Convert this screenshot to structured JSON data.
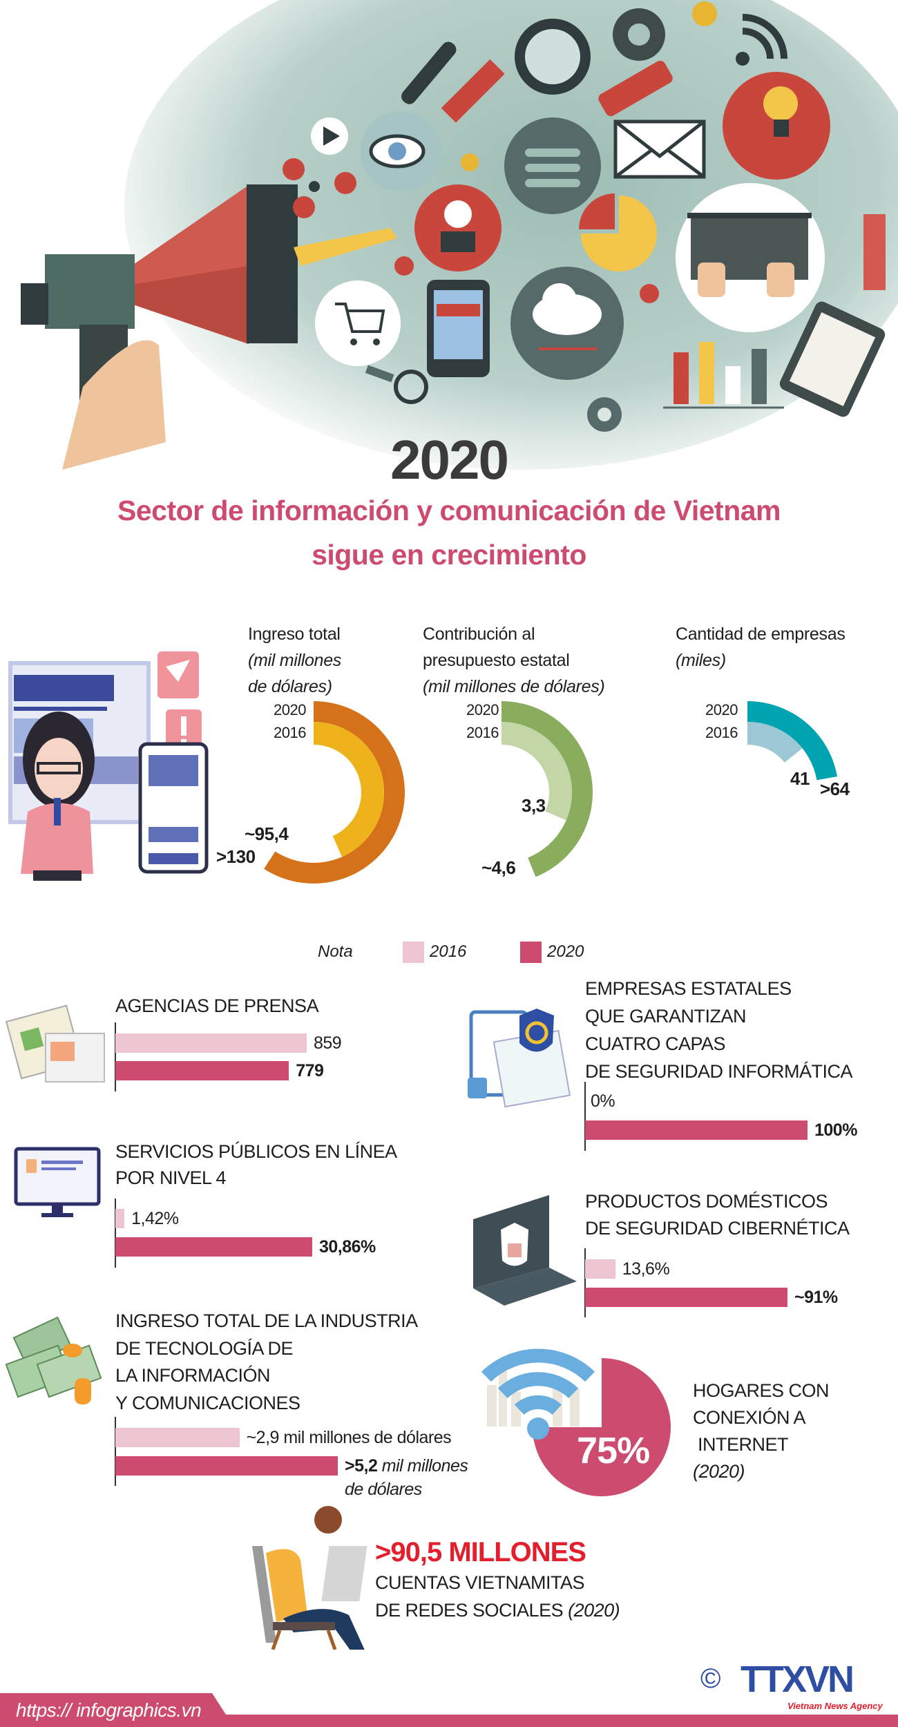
{
  "header": {
    "year": "2020",
    "title_line1": "Sector de información y comunicación de Vietnam",
    "title_line2": "sigue en crecimiento"
  },
  "radial_charts": [
    {
      "title": "Ingreso total",
      "unit_line1": "(mil millones",
      "unit_line2": "de dólares)",
      "year_2020": "2020",
      "year_2016": "2016",
      "value_2020": 130,
      "value_2016": 95.4,
      "label_2020": ">130",
      "label_2016": "~95,4",
      "color_2020": "#d57219",
      "color_2016": "#eeb31a"
    },
    {
      "title": "Contribución al",
      "title_line2": "presupuesto estatal",
      "unit_line1": "(mil millones de dólares)",
      "year_2020": "2020",
      "year_2016": "2016",
      "value_2020": 4.6,
      "value_2016": 3.3,
      "label_2020": "~4,6",
      "label_2016": "3,3",
      "color_2020": "#8aac5d",
      "color_2016": "#c3d6a8"
    },
    {
      "title": "Cantidad de empresas",
      "unit_line1": "(miles)",
      "year_2020": "2020",
      "year_2016": "2016",
      "value_2020": 64,
      "value_2016": 41,
      "label_2020": ">64",
      "label_2016": "41",
      "color_2020": "#00a3b0",
      "color_2016": "#9cc7d4"
    }
  ],
  "legend": {
    "label": "Nota",
    "y2016": "2016",
    "y2020": "2020",
    "color_2016": "#edc5d1",
    "color_2020": "#cc4b6e"
  },
  "bar_charts": {
    "agencias": {
      "title": [
        "AGENCIAS DE PRENSA"
      ],
      "v2016": 859,
      "v2020": 779,
      "l2016": "859",
      "l2020": "779"
    },
    "empresas": {
      "title": [
        "EMPRESAS ESTATALES",
        "QUE GARANTIZAN",
        "CUATRO CAPAS",
        "DE SEGURIDAD INFORMÁTICA"
      ],
      "v2016": 0,
      "v2020": 100,
      "l2016": "0%",
      "l2020": "100%"
    },
    "servicios": {
      "title": [
        "SERVICIOS PÚBLICOS EN LÍNEA",
        "POR NIVEL 4"
      ],
      "v2016": 1.42,
      "v2020": 30.86,
      "l2016": "1,42%",
      "l2020": "30,86%"
    },
    "productos": {
      "title": [
        "PRODUCTOS DOMÉSTICOS",
        "DE SEGURIDAD CIBERNÉTICA"
      ],
      "v2016": 13.6,
      "v2020": 91,
      "l2016": "13,6%",
      "l2020": "~91%"
    },
    "ingreso_tic": {
      "title": [
        "INGRESO TOTAL DE LA INDUSTRIA",
        "DE TECNOLOGÍA DE",
        "LA INFORMACIÓN",
        "Y COMUNICACIONES"
      ],
      "v2016": 2.9,
      "v2020": 5.2,
      "l2016": "~2,9 mil millones de dólares",
      "l2020_value": ">5,2",
      "l2020_unit": " mil millones",
      "l2020_unit2": "de dólares"
    }
  },
  "hogares": {
    "value": 75,
    "label": "75%",
    "lines": [
      "HOGARES CON",
      "CONEXIÓN A",
      " INTERNET"
    ],
    "year": "(2020)",
    "color": "#cc4b6e"
  },
  "redes": {
    "headline": ">90,5 MILLONES",
    "line1": "CUENTAS VIETNAMITAS",
    "line2": "DE REDES SOCIALES",
    "year": "(2020)"
  },
  "footer": {
    "url": "https:// infographics.vn",
    "copyright": "©",
    "logo": "TTXVN",
    "agency": "Vietnam News Agency"
  }
}
